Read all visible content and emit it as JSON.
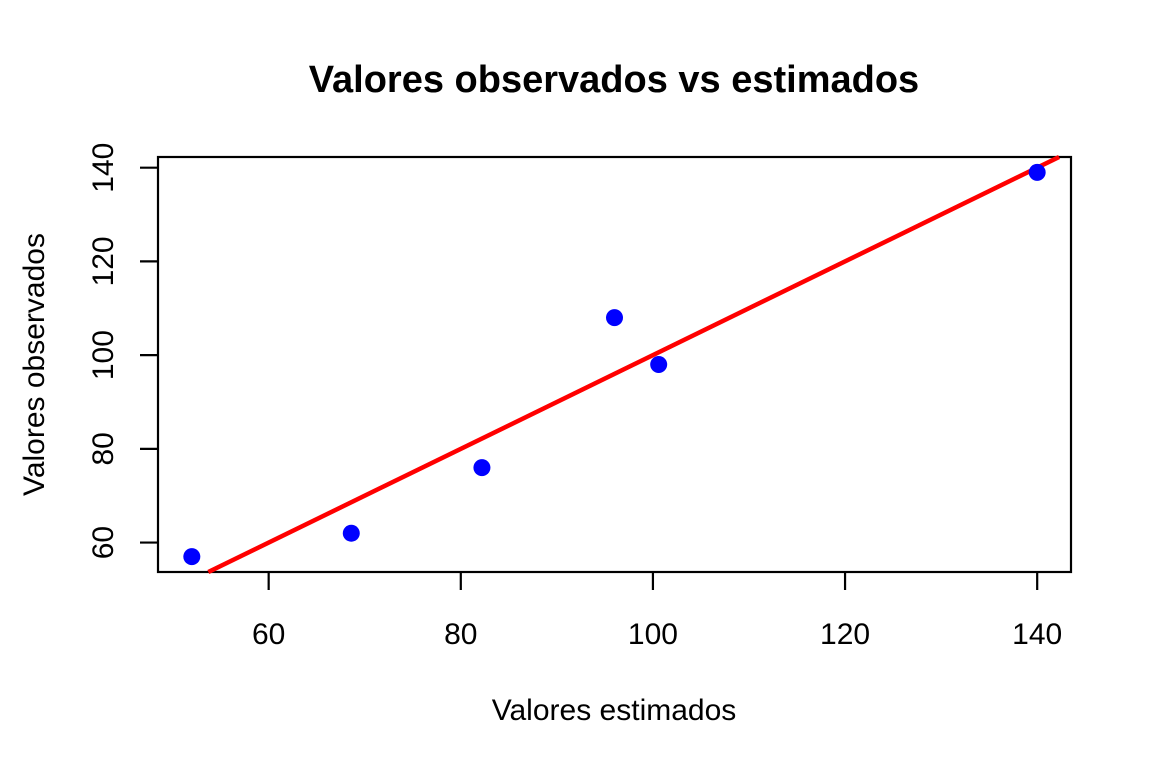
{
  "chart_data": {
    "type": "scatter",
    "title": "Valores observados vs estimados",
    "xlabel": "Valores estimados",
    "ylabel": "Valores observados",
    "points": [
      {
        "x": 52.0,
        "y": 57
      },
      {
        "x": 68.6,
        "y": 62
      },
      {
        "x": 82.2,
        "y": 76
      },
      {
        "x": 96.0,
        "y": 108
      },
      {
        "x": 100.6,
        "y": 98
      },
      {
        "x": 140.0,
        "y": 139
      }
    ],
    "xticks": [
      60,
      80,
      100,
      120,
      140
    ],
    "yticks": [
      60,
      80,
      100,
      120,
      140
    ],
    "xlim": [
      48.48,
      143.52
    ],
    "ylim": [
      53.72,
      142.28
    ],
    "line": {
      "name": "identity-line",
      "slope": 1,
      "intercept": 0,
      "color": "#ff0000"
    },
    "point_color": "#0000ff",
    "axis_color": "#000000",
    "background_color": "#ffffff",
    "grid": false,
    "legend": null
  }
}
